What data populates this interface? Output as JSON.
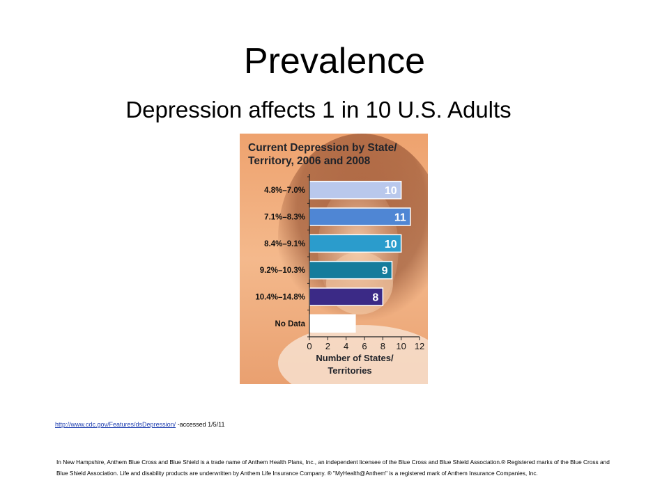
{
  "slide": {
    "title": "Prevalence",
    "subtitle": "Depression affects 1 in 10 U.S. Adults"
  },
  "source": {
    "link": "http://www.cdc.gov/Features/dsDepression/",
    "suffix": " -accessed 1/5/11"
  },
  "disclaimer": "In New  Hampshire, Anthem Blue Cross and Blue Shield is a trade name of Anthem Health Plans, Inc., an independent licensee of the Blue Cross and Blue Shield Association.® Registered marks of the Blue Cross and Blue Shield Association. Life and disability products are underwritten by Anthem Life Insurance Company. ® \"MyHealth@Anthem\" is a registered mark of Anthem Insurance Companies, Inc.",
  "chart_data": {
    "type": "bar",
    "orientation": "horizontal",
    "title": [
      "Current Depression by State/",
      "Territory, 2006 and 2008"
    ],
    "categories": [
      "4.8%–7.0%",
      "7.1%–8.3%",
      "8.4%–9.1%",
      "9.2%–10.3%",
      "10.4%–14.8%",
      "No Data"
    ],
    "values": [
      10,
      11,
      10,
      9,
      8,
      5
    ],
    "data_labels": [
      "10",
      "11",
      "10",
      "9",
      "8",
      ""
    ],
    "colors": [
      "#b9c8ec",
      "#4f86d4",
      "#2b9ccc",
      "#157c9c",
      "#3b2a86",
      "#ffffff"
    ],
    "xlabel": [
      "Number of States/",
      "Territories"
    ],
    "xlim": [
      0,
      12
    ],
    "xticks": [
      "0",
      "2",
      "4",
      "6",
      "8",
      "10",
      "12"
    ],
    "grid": false,
    "background": "photo of a woman covering her face with her hands"
  }
}
